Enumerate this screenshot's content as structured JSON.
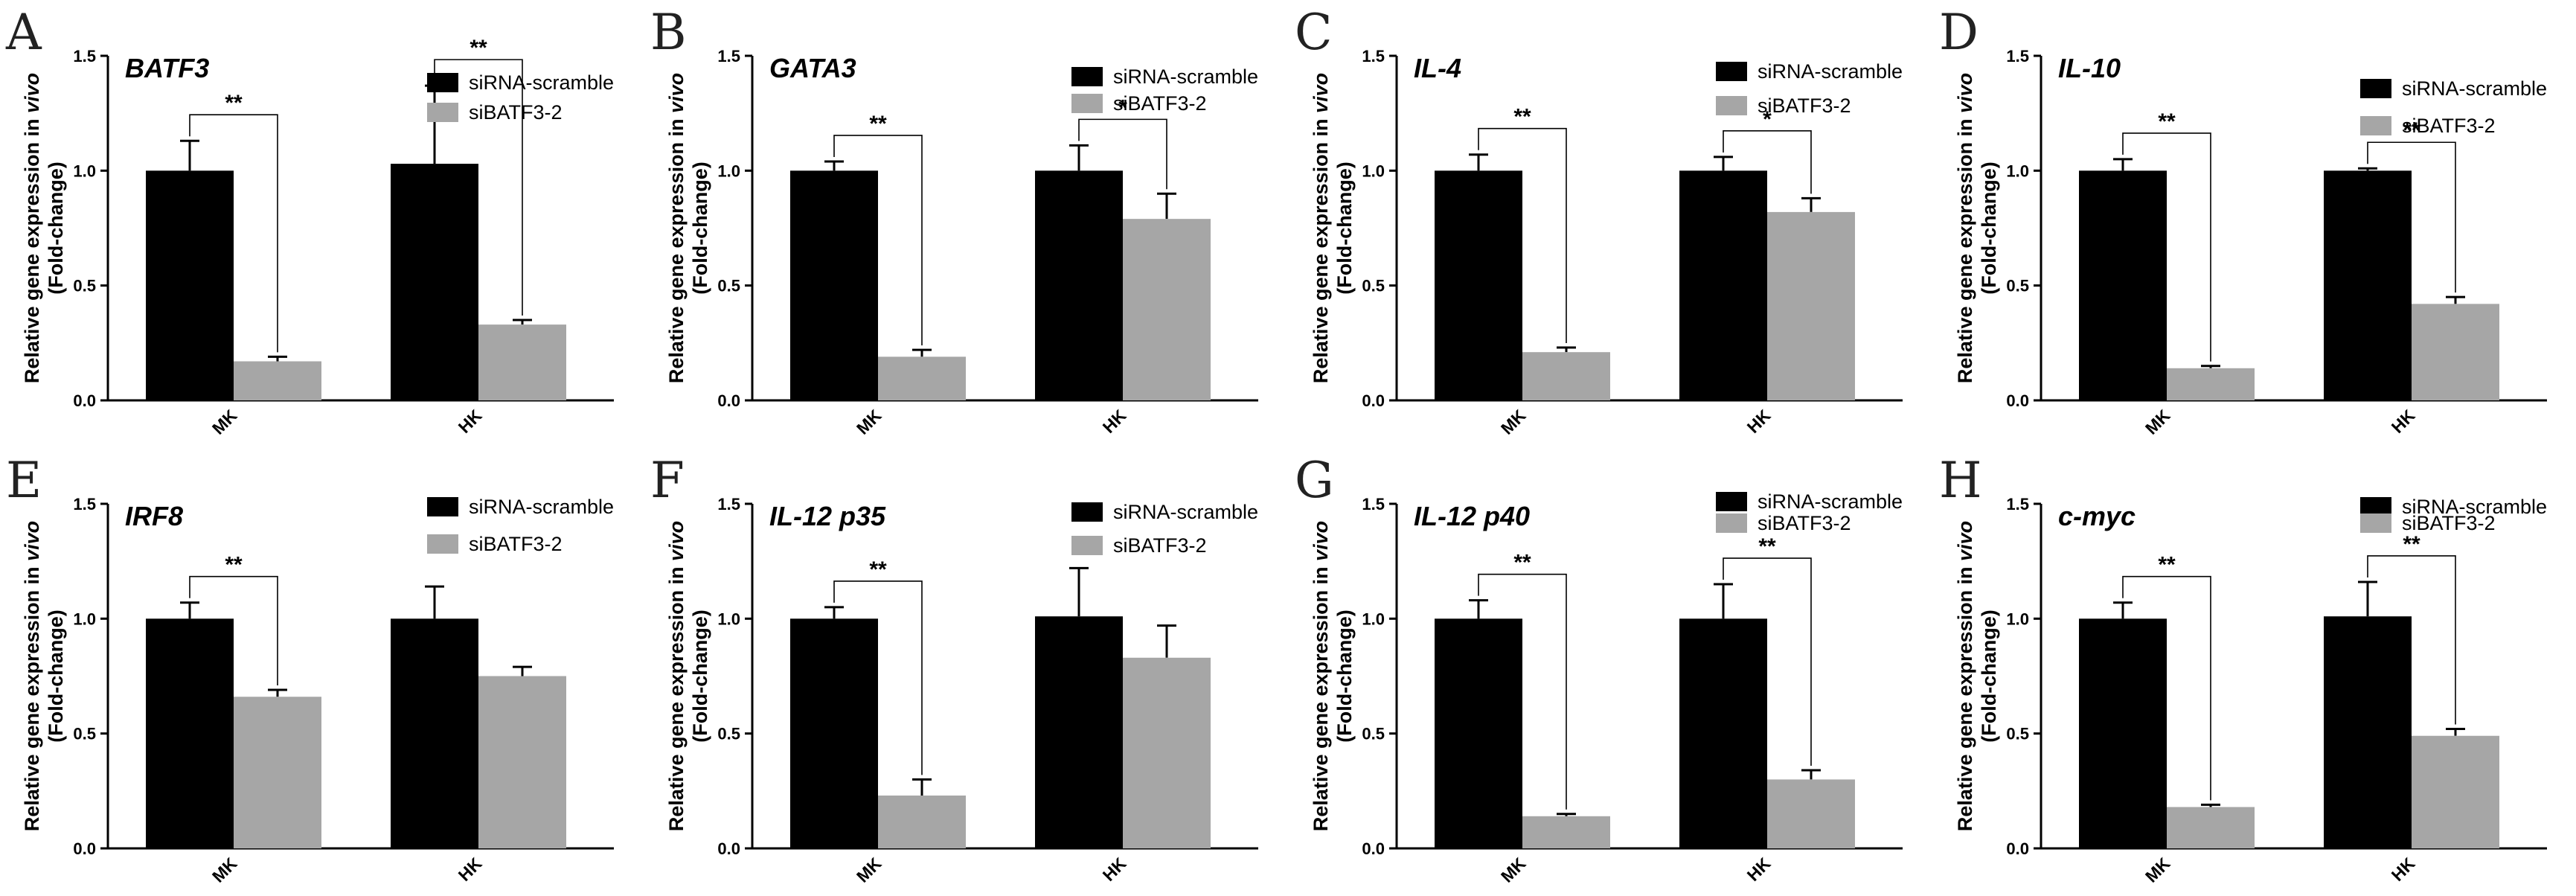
{
  "figure": {
    "panel_count": 8
  },
  "chart_data": [
    {
      "type": "bar",
      "panel_label": "A",
      "title": "BATF3",
      "ylabel": "Relative gene expression in vivo (Fold-change)",
      "ylabel_main": "Relative gene expression in ",
      "ylabel_em": "vivo",
      "ylabel_sub": "(Fold-change)",
      "ylim": [
        0,
        1.5
      ],
      "yticks": [
        "0.0",
        "0.5",
        "1.0",
        "1.5"
      ],
      "ytick_values": [
        0,
        0.5,
        1.0,
        1.5
      ],
      "categories": [
        "MK",
        "HK"
      ],
      "series": [
        {
          "name": "siRNA-scramble",
          "color": "#000000",
          "values": [
            1.0,
            1.03
          ],
          "errors": [
            0.13,
            0.34
          ]
        },
        {
          "name": "siBATF3-2",
          "color": "#a6a6a6",
          "values": [
            0.17,
            0.33
          ],
          "errors": [
            0.02,
            0.02
          ]
        }
      ],
      "significance": [
        {
          "category": 0,
          "label": "**"
        },
        {
          "category": 1,
          "label": "**"
        }
      ]
    },
    {
      "type": "bar",
      "panel_label": "B",
      "title": "GATA3",
      "ylabel": "Relative gene expression in vivo (Fold-change)",
      "ylabel_main": "Relative gene expression in ",
      "ylabel_em": "vivo",
      "ylabel_sub": "(Fold-change)",
      "ylim": [
        0,
        1.5
      ],
      "yticks": [
        "0.0",
        "0.5",
        "1.0",
        "1.5"
      ],
      "ytick_values": [
        0,
        0.5,
        1.0,
        1.5
      ],
      "categories": [
        "MK",
        "HK"
      ],
      "series": [
        {
          "name": "siRNA-scramble",
          "color": "#000000",
          "values": [
            1.0,
            1.0
          ],
          "errors": [
            0.04,
            0.11
          ]
        },
        {
          "name": "siBATF3-2",
          "color": "#a6a6a6",
          "values": [
            0.19,
            0.79
          ],
          "errors": [
            0.03,
            0.11
          ]
        }
      ],
      "significance": [
        {
          "category": 0,
          "label": "**"
        },
        {
          "category": 1,
          "label": "*"
        }
      ]
    },
    {
      "type": "bar",
      "panel_label": "C",
      "title": "IL-4",
      "ylabel": "Relative gene expression in vivo (Fold-change)",
      "ylabel_main": "Relative gene expression in ",
      "ylabel_em": "vivo",
      "ylabel_sub": "(Fold-change)",
      "ylim": [
        0,
        1.5
      ],
      "yticks": [
        "0.0",
        "0.5",
        "1.0",
        "1.5"
      ],
      "ytick_values": [
        0,
        0.5,
        1.0,
        1.5
      ],
      "categories": [
        "MK",
        "HK"
      ],
      "series": [
        {
          "name": "siRNA-scramble",
          "color": "#000000",
          "values": [
            1.0,
            1.0
          ],
          "errors": [
            0.07,
            0.06
          ]
        },
        {
          "name": "siBATF3-2",
          "color": "#a6a6a6",
          "values": [
            0.21,
            0.82
          ],
          "errors": [
            0.02,
            0.06
          ]
        }
      ],
      "significance": [
        {
          "category": 0,
          "label": "**"
        },
        {
          "category": 1,
          "label": "*"
        }
      ]
    },
    {
      "type": "bar",
      "panel_label": "D",
      "title": "IL-10",
      "ylabel": "Relative gene expression in vivo (Fold-change)",
      "ylabel_main": "Relative gene expression in ",
      "ylabel_em": "vivo",
      "ylabel_sub": "(Fold-change)",
      "ylim": [
        0,
        1.5
      ],
      "yticks": [
        "0.0",
        "0.5",
        "1.0",
        "1.5"
      ],
      "ytick_values": [
        0,
        0.5,
        1.0,
        1.5
      ],
      "categories": [
        "MK",
        "HK"
      ],
      "series": [
        {
          "name": "siRNA-scramble",
          "color": "#000000",
          "values": [
            1.0,
            1.0
          ],
          "errors": [
            0.05,
            0.01
          ]
        },
        {
          "name": "siBATF3-2",
          "color": "#a6a6a6",
          "values": [
            0.14,
            0.42
          ],
          "errors": [
            0.01,
            0.03
          ]
        }
      ],
      "significance": [
        {
          "category": 0,
          "label": "**"
        },
        {
          "category": 1,
          "label": "**"
        }
      ]
    },
    {
      "type": "bar",
      "panel_label": "E",
      "title": "IRF8",
      "ylabel": "Relative gene expression in vivo (Fold-change)",
      "ylabel_main": "Relative gene expression in ",
      "ylabel_em": "vivo",
      "ylabel_sub": "(Fold-change)",
      "ylim": [
        0,
        1.5
      ],
      "yticks": [
        "0.0",
        "0.5",
        "1.0",
        "1.5"
      ],
      "ytick_values": [
        0,
        0.5,
        1.0,
        1.5
      ],
      "categories": [
        "MK",
        "HK"
      ],
      "series": [
        {
          "name": "siRNA-scramble",
          "color": "#000000",
          "values": [
            1.0,
            1.0
          ],
          "errors": [
            0.07,
            0.14
          ]
        },
        {
          "name": "siBATF3-2",
          "color": "#a6a6a6",
          "values": [
            0.66,
            0.75
          ],
          "errors": [
            0.03,
            0.04
          ]
        }
      ],
      "significance": [
        {
          "category": 0,
          "label": "**"
        }
      ]
    },
    {
      "type": "bar",
      "panel_label": "F",
      "title": "IL-12 p35",
      "ylabel": "Relative gene expression in vivo (Fold-change)",
      "ylabel_main": "Relative gene expression in ",
      "ylabel_em": "vivo",
      "ylabel_sub": "(Fold-change)",
      "ylim": [
        0,
        1.5
      ],
      "yticks": [
        "0.0",
        "0.5",
        "1.0",
        "1.5"
      ],
      "ytick_values": [
        0,
        0.5,
        1.0,
        1.5
      ],
      "categories": [
        "MK",
        "HK"
      ],
      "series": [
        {
          "name": "siRNA-scramble",
          "color": "#000000",
          "values": [
            1.0,
            1.01
          ],
          "errors": [
            0.05,
            0.21
          ]
        },
        {
          "name": "siBATF3-2",
          "color": "#a6a6a6",
          "values": [
            0.23,
            0.83
          ],
          "errors": [
            0.07,
            0.14
          ]
        }
      ],
      "significance": [
        {
          "category": 0,
          "label": "**"
        }
      ]
    },
    {
      "type": "bar",
      "panel_label": "G",
      "title": "IL-12 p40",
      "ylabel": "Relative gene expression in vivo (Fold-change)",
      "ylabel_main": "Relative gene expression in ",
      "ylabel_em": "vivo",
      "ylabel_sub": "(Fold-change)",
      "ylim": [
        0,
        1.5
      ],
      "yticks": [
        "0.0",
        "0.5",
        "1.0",
        "1.5"
      ],
      "ytick_values": [
        0,
        0.5,
        1.0,
        1.5
      ],
      "categories": [
        "MK",
        "HK"
      ],
      "series": [
        {
          "name": "siRNA-scramble",
          "color": "#000000",
          "values": [
            1.0,
            1.0
          ],
          "errors": [
            0.08,
            0.15
          ]
        },
        {
          "name": "siBATF3-2",
          "color": "#a6a6a6",
          "values": [
            0.14,
            0.3
          ],
          "errors": [
            0.01,
            0.04
          ]
        }
      ],
      "significance": [
        {
          "category": 0,
          "label": "**"
        },
        {
          "category": 1,
          "label": "**"
        }
      ]
    },
    {
      "type": "bar",
      "panel_label": "H",
      "title": "c-myc",
      "ylabel": "Relative gene expression in vivo (Fold-change)",
      "ylabel_main": "Relative gene expression in ",
      "ylabel_em": "vivo",
      "ylabel_sub": "(Fold-change)",
      "ylim": [
        0,
        1.5
      ],
      "yticks": [
        "0.0",
        "0.5",
        "1.0",
        "1.5"
      ],
      "ytick_values": [
        0,
        0.5,
        1.0,
        1.5
      ],
      "categories": [
        "MK",
        "HK"
      ],
      "series": [
        {
          "name": "siRNA-scramble",
          "color": "#000000",
          "values": [
            1.0,
            1.01
          ],
          "errors": [
            0.07,
            0.15
          ]
        },
        {
          "name": "siBATF3-2",
          "color": "#a6a6a6",
          "values": [
            0.18,
            0.49
          ],
          "errors": [
            0.01,
            0.03
          ]
        }
      ],
      "significance": [
        {
          "category": 0,
          "label": "**"
        },
        {
          "category": 1,
          "label": "**"
        }
      ]
    }
  ]
}
